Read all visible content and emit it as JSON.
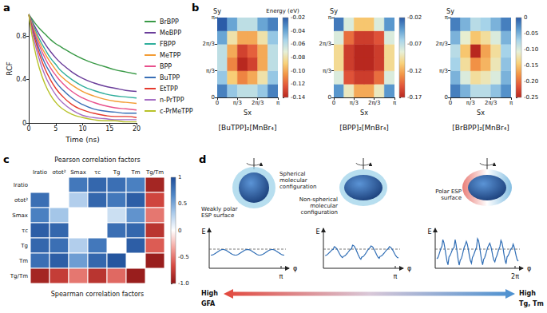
{
  "panel_letters": [
    "a",
    "b",
    "c",
    "d"
  ],
  "chart_data": [
    {
      "type": "line",
      "xlabel": "Time (ns)",
      "ylabel": "RCF",
      "x": [
        0,
        1,
        2,
        3,
        4,
        5,
        6,
        8,
        10,
        12,
        14,
        16,
        18,
        20
      ],
      "xlim": [
        0,
        20
      ],
      "xticks": [
        0,
        5,
        10,
        15,
        20
      ],
      "ylim": [
        0,
        1
      ],
      "yticks": [
        0,
        0.4,
        0.8
      ],
      "grid": false,
      "legend": "right",
      "series": [
        {
          "name": "BrBPP",
          "color": "#3a9a47",
          "values": [
            1.0,
            0.93,
            0.87,
            0.82,
            0.77,
            0.73,
            0.7,
            0.64,
            0.59,
            0.55,
            0.52,
            0.49,
            0.47,
            0.45
          ]
        },
        {
          "name": "MeBPP",
          "color": "#6a3d9a",
          "values": [
            1.0,
            0.9,
            0.81,
            0.73,
            0.66,
            0.6,
            0.55,
            0.47,
            0.41,
            0.37,
            0.34,
            0.32,
            0.3,
            0.29
          ]
        },
        {
          "name": "FBPP",
          "color": "#2fae9c",
          "values": [
            1.0,
            0.88,
            0.77,
            0.68,
            0.6,
            0.54,
            0.48,
            0.4,
            0.34,
            0.3,
            0.27,
            0.25,
            0.24,
            0.23
          ]
        },
        {
          "name": "MeTPP",
          "color": "#f39c34",
          "values": [
            1.0,
            0.86,
            0.74,
            0.64,
            0.56,
            0.49,
            0.43,
            0.35,
            0.29,
            0.25,
            0.22,
            0.2,
            0.19,
            0.18
          ]
        },
        {
          "name": "BPP",
          "color": "#e8508c",
          "values": [
            1.0,
            0.84,
            0.71,
            0.6,
            0.51,
            0.44,
            0.38,
            0.29,
            0.23,
            0.19,
            0.16,
            0.14,
            0.13,
            0.12
          ]
        },
        {
          "name": "BuTPP",
          "color": "#3a6fb6",
          "values": [
            1.0,
            0.82,
            0.67,
            0.55,
            0.46,
            0.38,
            0.32,
            0.23,
            0.17,
            0.13,
            0.11,
            0.1,
            0.09,
            0.09
          ]
        },
        {
          "name": "EtTPP",
          "color": "#e53b2f",
          "values": [
            1.0,
            0.8,
            0.63,
            0.5,
            0.4,
            0.32,
            0.26,
            0.17,
            0.12,
            0.09,
            0.07,
            0.06,
            0.06,
            0.05
          ]
        },
        {
          "name": "n-PrTPP",
          "color": "#a66fc4",
          "values": [
            1.0,
            0.76,
            0.58,
            0.44,
            0.34,
            0.26,
            0.2,
            0.12,
            0.07,
            0.05,
            0.04,
            0.03,
            0.03,
            0.03
          ]
        },
        {
          "name": "c-PrMeTPP",
          "color": "#b8c22a",
          "values": [
            1.0,
            0.7,
            0.5,
            0.36,
            0.26,
            0.19,
            0.14,
            0.08,
            0.05,
            0.03,
            0.02,
            0.02,
            0.01,
            0.01
          ]
        }
      ]
    },
    {
      "type": "heatmap",
      "title": "[BuTPP]₂[MnBr₄]",
      "xlabel": "Sx",
      "ylabel": "Sy",
      "x": [
        0.2618,
        0.7854,
        1.309,
        1.8326,
        2.3562,
        2.8798
      ],
      "y": [
        0.2618,
        0.7854,
        1.309,
        1.8326,
        2.3562,
        2.8798
      ],
      "xlim": [
        0,
        3.1416
      ],
      "xticks": [
        0,
        {
          "value": 1.0472,
          "label": "π/3"
        },
        {
          "value": 2.0944,
          "label": "2π/3"
        },
        {
          "value": 3.1416,
          "label": "π"
        }
      ],
      "ylim": [
        0,
        3.1416
      ],
      "yticks": [
        0,
        {
          "value": 1.0472,
          "label": "π/3"
        },
        {
          "value": 2.0944,
          "label": "2π/3"
        },
        {
          "value": 3.1416,
          "label": "π"
        }
      ],
      "cells": [
        [
          -0.03,
          -0.05,
          -0.06,
          -0.06,
          -0.05,
          -0.03
        ],
        [
          -0.05,
          -0.09,
          -0.11,
          -0.1,
          -0.08,
          -0.05
        ],
        [
          -0.06,
          -0.11,
          -0.14,
          -0.13,
          -0.1,
          -0.06
        ],
        [
          -0.06,
          -0.1,
          -0.13,
          -0.12,
          -0.1,
          -0.06
        ],
        [
          -0.04,
          -0.08,
          -0.1,
          -0.1,
          -0.08,
          -0.05
        ],
        [
          -0.02,
          -0.04,
          -0.06,
          -0.06,
          -0.04,
          -0.03
        ]
      ],
      "colorbar": {
        "label": "Energy (eV)",
        "range": [
          -0.14,
          -0.02
        ],
        "ticks": [
          -0.02,
          -0.04,
          -0.06,
          -0.08,
          {
            "value": -0.1,
            "label": "-0.10"
          },
          -0.12,
          -0.14
        ]
      }
    },
    {
      "type": "heatmap",
      "title": "[BPP]₂[MnBr₄]",
      "xlabel": "Sx",
      "ylabel": "Sy",
      "x": [
        0.2618,
        0.7854,
        1.309,
        1.8326,
        2.3562,
        2.8798
      ],
      "y": [
        0.2618,
        0.7854,
        1.309,
        1.8326,
        2.3562,
        2.8798
      ],
      "xlim": [
        0,
        3.1416
      ],
      "xticks": [
        0,
        {
          "value": 1.0472,
          "label": "π/3"
        },
        {
          "value": 2.0944,
          "label": "2π/3"
        },
        {
          "value": 3.1416,
          "label": "π"
        }
      ],
      "ylim": [
        0,
        3.1416
      ],
      "yticks": [
        0,
        {
          "value": 1.0472,
          "label": "π/3"
        },
        {
          "value": 2.0944,
          "label": "2π/3"
        },
        {
          "value": 3.1416,
          "label": "π"
        }
      ],
      "cells": [
        [
          -0.04,
          -0.09,
          -0.12,
          -0.12,
          -0.09,
          -0.04
        ],
        [
          -0.08,
          -0.15,
          -0.16,
          -0.16,
          -0.14,
          -0.08
        ],
        [
          -0.1,
          -0.16,
          -0.17,
          -0.17,
          -0.16,
          -0.1
        ],
        [
          -0.1,
          -0.16,
          -0.17,
          -0.17,
          -0.16,
          -0.1
        ],
        [
          -0.08,
          -0.14,
          -0.16,
          -0.16,
          -0.15,
          -0.08
        ],
        [
          -0.03,
          -0.08,
          -0.11,
          -0.11,
          -0.08,
          -0.04
        ]
      ],
      "colorbar": {
        "range": [
          -0.17,
          -0.02
        ],
        "ticks": [
          -0.02,
          -0.07,
          -0.12,
          -0.17
        ]
      }
    },
    {
      "type": "heatmap",
      "title": "[BrBPP]₂[MnBr₄]",
      "xlabel": "Sx",
      "ylabel": "Sy",
      "x": [
        0.2618,
        0.7854,
        1.309,
        1.8326,
        2.3562,
        2.8798
      ],
      "y": [
        0.2618,
        0.7854,
        1.309,
        1.8326,
        2.3562,
        2.8798
      ],
      "xlim": [
        0,
        3.1416
      ],
      "xticks": [
        0,
        {
          "value": 1.0472,
          "label": "π/3"
        },
        {
          "value": 2.0944,
          "label": "2π/3"
        },
        {
          "value": 3.1416,
          "label": "π"
        }
      ],
      "ylim": [
        0,
        3.1416
      ],
      "yticks": [
        0,
        {
          "value": 1.0472,
          "label": "π/3"
        },
        {
          "value": 2.0944,
          "label": "2π/3"
        },
        {
          "value": 3.1416,
          "label": "π"
        }
      ],
      "cells": [
        [
          -0.02,
          -0.05,
          -0.08,
          -0.08,
          -0.06,
          -0.03
        ],
        [
          -0.05,
          -0.1,
          -0.13,
          -0.12,
          -0.1,
          -0.05
        ],
        [
          -0.07,
          -0.13,
          -0.18,
          -0.16,
          -0.12,
          -0.06
        ],
        [
          -0.08,
          -0.15,
          -0.25,
          -0.17,
          -0.13,
          -0.07
        ],
        [
          -0.05,
          -0.11,
          -0.15,
          -0.13,
          -0.1,
          -0.05
        ],
        [
          -0.02,
          -0.05,
          -0.08,
          -0.07,
          -0.05,
          -0.02
        ]
      ],
      "colorbar": {
        "range": [
          -0.25,
          0
        ],
        "ticks": [
          0,
          -0.05,
          {
            "value": -0.1,
            "label": "-0.10"
          },
          -0.15,
          {
            "value": -0.2,
            "label": "-0.20"
          },
          -0.25
        ]
      }
    },
    {
      "type": "heatmap",
      "annotations": {
        "upper": "Pearson correlation factors",
        "lower": "Spearman correlation factors"
      },
      "categories": [
        "Iratio",
        "σtot²",
        "Smax",
        "τc",
        "Tg",
        "Tm",
        "Tg/Tm"
      ],
      "cells": [
        [
          null,
          null,
          0.75,
          0.85,
          0.8,
          0.7,
          -0.9
        ],
        [
          0.8,
          null,
          0.3,
          0.85,
          0.75,
          0.9,
          -0.7
        ],
        [
          0.7,
          0.35,
          null,
          null,
          0.2,
          0.6,
          -0.5
        ],
        [
          0.9,
          0.85,
          null,
          null,
          0.8,
          0.85,
          -0.8
        ],
        [
          0.85,
          0.8,
          0.3,
          0.75,
          null,
          0.9,
          -0.6
        ],
        [
          0.8,
          0.9,
          0.55,
          0.85,
          0.95,
          null,
          -0.95
        ],
        [
          -0.9,
          -0.75,
          -0.5,
          -0.8,
          -0.55,
          -0.95,
          null
        ]
      ],
      "colorbar": {
        "range": [
          -1,
          1
        ],
        "ticks": [
          1,
          0.5,
          0,
          -0.5,
          {
            "value": -1,
            "label": "-1.0"
          }
        ]
      }
    }
  ],
  "diagram": {
    "columns": [
      {
        "configuration_label": "Spherical molecular configuration",
        "surface_label": "Weakly polar ESP surface",
        "energy_axis": "E",
        "angle_axis": "φ",
        "angle_tick": "π"
      },
      {
        "configuration_label": "Non-spherical molecular configuration",
        "energy_axis": "E",
        "angle_axis": "φ",
        "angle_tick": "π"
      },
      {
        "surface_label": "Polar ESP surface",
        "energy_axis": "E",
        "angle_axis": "φ",
        "angle_tick": "2π"
      }
    ],
    "trend": {
      "left": [
        "High",
        "GFA"
      ],
      "right": [
        "High",
        "Tg, Tm"
      ]
    }
  }
}
